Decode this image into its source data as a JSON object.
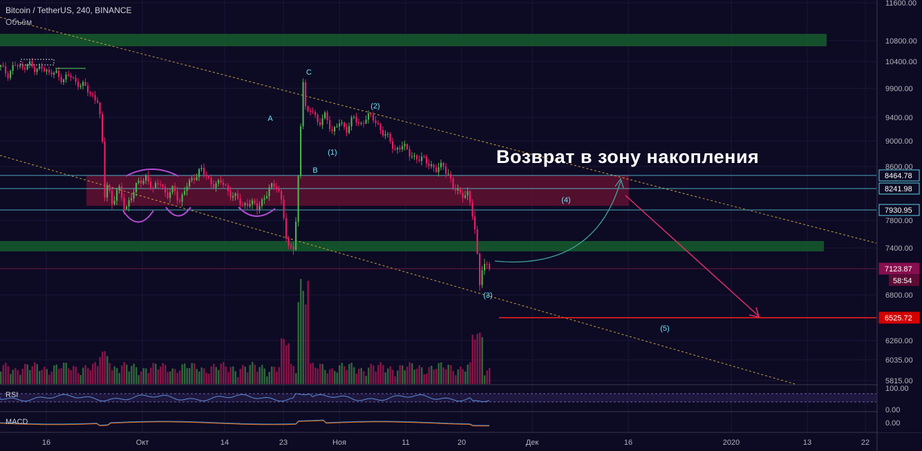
{
  "header": {
    "symbol_line": "Bitcoin / TetherUS, 240, BINANCE",
    "volume_label": "Объём"
  },
  "panes": {
    "rsi_label": "RSI",
    "macd_label": "MACD",
    "rsi_ticks": [
      "100.00",
      "0.00"
    ],
    "macd_ticks": [
      "0.00"
    ]
  },
  "annotation": "Возврат в зону накопления",
  "colors": {
    "background": "#0d0a24",
    "bull": "#4caf50",
    "bear": "#e91e63",
    "zone_green": "#15532c",
    "zone_red": "#6b1232",
    "level_line": "#5fd3e6",
    "target_line": "#ff1f1f",
    "channel": "#c6a53a",
    "wave_label": "#6fe3f0",
    "current_price_bg": "#880e4f",
    "target_price_bg": "#d50000"
  },
  "chart_data": {
    "type": "candlestick",
    "title": "Bitcoin / TetherUS, 240, BINANCE",
    "y_axis_ticks": [
      "11600.00",
      "10800.00",
      "10400.00",
      "9900.00",
      "9400.00",
      "9000.00",
      "8600.00",
      "7800.00",
      "7400.00",
      "6800.00",
      "6260.00",
      "6035.00",
      "5815.00"
    ],
    "x_axis_ticks": [
      "16",
      "Окт",
      "14",
      "23",
      "Ноя",
      "11",
      "20",
      "Дек",
      "16",
      "2020",
      "13",
      "22"
    ],
    "price_levels": [
      {
        "label": "8464.78",
        "kind": "horizontal-level"
      },
      {
        "label": "8241.98",
        "kind": "horizontal-level"
      },
      {
        "label": "7930.95",
        "kind": "horizontal-level"
      },
      {
        "label": "7123.87",
        "kind": "current-price",
        "countdown": "58:54"
      },
      {
        "label": "6525.72",
        "kind": "target-level"
      }
    ],
    "wave_labels": [
      "A",
      "B",
      "C",
      "(1)",
      "(2)",
      "(3)",
      "(4)",
      "(5)"
    ],
    "price_path": [
      {
        "t": 0,
        "p": 10300
      },
      {
        "t": 10,
        "p": 10150
      },
      {
        "t": 20,
        "p": 10350
      },
      {
        "t": 30,
        "p": 10250
      },
      {
        "t": 40,
        "p": 10400
      },
      {
        "t": 50,
        "p": 10200
      },
      {
        "t": 60,
        "p": 10330
      },
      {
        "t": 70,
        "p": 10150
      },
      {
        "t": 80,
        "p": 10200
      },
      {
        "t": 90,
        "p": 10050
      },
      {
        "t": 100,
        "p": 10150
      },
      {
        "t": 110,
        "p": 10000
      },
      {
        "t": 120,
        "p": 9950
      },
      {
        "t": 130,
        "p": 9800
      },
      {
        "t": 140,
        "p": 9700
      },
      {
        "t": 146,
        "p": 9200
      },
      {
        "t": 150,
        "p": 8100
      },
      {
        "t": 155,
        "p": 8400
      },
      {
        "t": 160,
        "p": 8000
      },
      {
        "t": 170,
        "p": 8250
      },
      {
        "t": 180,
        "p": 7950
      },
      {
        "t": 190,
        "p": 8150
      },
      {
        "t": 200,
        "p": 8350
      },
      {
        "t": 210,
        "p": 8450
      },
      {
        "t": 220,
        "p": 8200
      },
      {
        "t": 230,
        "p": 8400
      },
      {
        "t": 240,
        "p": 8100
      },
      {
        "t": 250,
        "p": 8250
      },
      {
        "t": 260,
        "p": 8050
      },
      {
        "t": 270,
        "p": 8300
      },
      {
        "t": 280,
        "p": 8450
      },
      {
        "t": 290,
        "p": 8550
      },
      {
        "t": 300,
        "p": 8400
      },
      {
        "t": 310,
        "p": 8300
      },
      {
        "t": 320,
        "p": 8350
      },
      {
        "t": 330,
        "p": 8200
      },
      {
        "t": 340,
        "p": 8100
      },
      {
        "t": 350,
        "p": 8000
      },
      {
        "t": 360,
        "p": 8050
      },
      {
        "t": 370,
        "p": 7950
      },
      {
        "t": 380,
        "p": 8100
      },
      {
        "t": 390,
        "p": 8250
      },
      {
        "t": 400,
        "p": 8300
      },
      {
        "t": 408,
        "p": 8000
      },
      {
        "t": 415,
        "p": 7350
      },
      {
        "t": 425,
        "p": 7450
      },
      {
        "t": 432,
        "p": 8700
      },
      {
        "t": 437,
        "p": 10100
      },
      {
        "t": 442,
        "p": 9400
      },
      {
        "t": 450,
        "p": 9600
      },
      {
        "t": 460,
        "p": 9250
      },
      {
        "t": 470,
        "p": 9450
      },
      {
        "t": 480,
        "p": 9150
      },
      {
        "t": 490,
        "p": 9300
      },
      {
        "t": 500,
        "p": 9200
      },
      {
        "t": 510,
        "p": 9400
      },
      {
        "t": 520,
        "p": 9250
      },
      {
        "t": 530,
        "p": 9450
      },
      {
        "t": 540,
        "p": 9350
      },
      {
        "t": 550,
        "p": 9200
      },
      {
        "t": 560,
        "p": 9050
      },
      {
        "t": 570,
        "p": 8850
      },
      {
        "t": 580,
        "p": 8950
      },
      {
        "t": 590,
        "p": 8800
      },
      {
        "t": 600,
        "p": 8750
      },
      {
        "t": 610,
        "p": 8700
      },
      {
        "t": 620,
        "p": 8650
      },
      {
        "t": 630,
        "p": 8550
      },
      {
        "t": 640,
        "p": 8600
      },
      {
        "t": 648,
        "p": 8500
      },
      {
        "t": 655,
        "p": 8250
      },
      {
        "t": 665,
        "p": 8150
      },
      {
        "t": 675,
        "p": 8200
      },
      {
        "t": 682,
        "p": 7900
      },
      {
        "t": 688,
        "p": 7500
      },
      {
        "t": 692,
        "p": 6900
      },
      {
        "t": 697,
        "p": 7200
      },
      {
        "t": 703,
        "p": 7150
      },
      {
        "t": 708,
        "p": 7124
      }
    ]
  }
}
